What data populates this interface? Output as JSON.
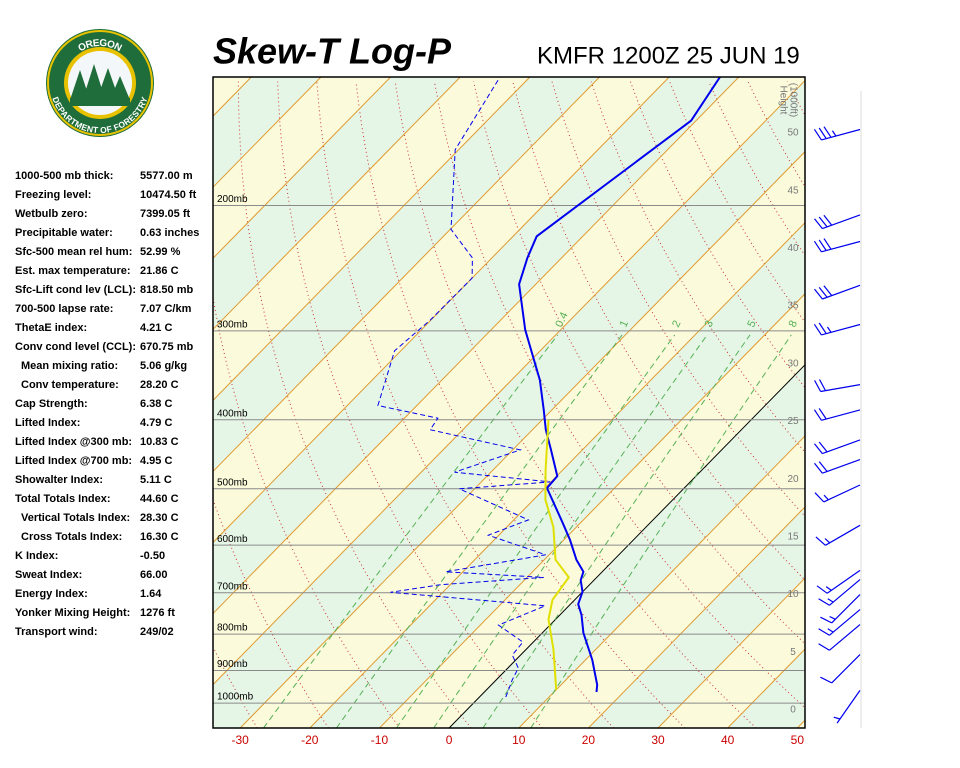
{
  "logo": {
    "top": "OREGON",
    "bottom": "DEPARTMENT OF FORESTRY"
  },
  "indices": [
    {
      "label": "1000-500 mb thick:",
      "value": "5577.00 m"
    },
    {
      "label": "Freezing level:",
      "value": "10474.50 ft"
    },
    {
      "label": "Wetbulb zero:",
      "value": "7399.05 ft"
    },
    {
      "label": "Precipitable water:",
      "value": "0.63 inches"
    },
    {
      "label": "Sfc-500 mean rel hum:",
      "value": "52.99 %"
    },
    {
      "label": "Est. max temperature:",
      "value": "21.86 C"
    },
    {
      "label": "Sfc-Lift cond lev (LCL):",
      "value": "818.50 mb"
    },
    {
      "label": "700-500 lapse rate:",
      "value": "7.07 C/km"
    },
    {
      "label": "ThetaE index:",
      "value": "4.21 C"
    },
    {
      "label": "Conv cond level (CCL):",
      "value": "670.75 mb"
    },
    {
      "label": "Mean mixing ratio:",
      "value": "5.06 g/kg",
      "indent": true
    },
    {
      "label": "Conv temperature:",
      "value": "28.20 C",
      "indent": true
    },
    {
      "label": "Cap Strength:",
      "value": "6.38 C"
    },
    {
      "label": "Lifted Index:",
      "value": "4.79 C"
    },
    {
      "label": "Lifted Index @300 mb:",
      "value": "10.83 C"
    },
    {
      "label": "Lifted Index @700 mb:",
      "value": "4.95 C"
    },
    {
      "label": "Showalter Index:",
      "value": "5.11 C"
    },
    {
      "label": "Total Totals Index:",
      "value": "44.60 C"
    },
    {
      "label": "Vertical Totals Index:",
      "value": "28.30 C",
      "indent": true
    },
    {
      "label": "Cross Totals Index:",
      "value": "16.30 C",
      "indent": true
    },
    {
      "label": "K Index:",
      "value": "-0.50"
    },
    {
      "label": "Sweat Index:",
      "value": "66.00"
    },
    {
      "label": "Energy Index:",
      "value": "1.64"
    },
    {
      "label": "Yonker Mixing Height:",
      "value": "1276 ft"
    },
    {
      "label": "Transport wind:",
      "value": "249/02"
    }
  ],
  "chart_data": {
    "type": "skew-t",
    "title": "Skew-T Log-P",
    "subtitle": "KMFR 1200Z 25 JUN 19",
    "xlim": [
      -33.9,
      51.1
    ],
    "xticks": [
      -30,
      -20,
      -10,
      0,
      10,
      20,
      30,
      40,
      50
    ],
    "ylim": [
      1084,
      132
    ],
    "log_y": true,
    "yticks": [
      {
        "value": 1000,
        "label": "1000mb"
      },
      {
        "value": 900,
        "label": "900mb"
      },
      {
        "value": 800,
        "label": "800mb"
      },
      {
        "value": 700,
        "label": "700mb"
      },
      {
        "value": 600,
        "label": "600mb"
      },
      {
        "value": 500,
        "label": "500mb"
      },
      {
        "value": 400,
        "label": "400mb"
      },
      {
        "value": 300,
        "label": "300mb"
      },
      {
        "value": 200,
        "label": "200mb"
      }
    ],
    "grid": true,
    "height_label": [
      "Height",
      "(1000ft)"
    ],
    "height_lim": [
      -1.56,
      54.85
    ],
    "height_ticks": [
      0,
      5,
      10,
      15,
      20,
      25,
      30,
      35,
      40,
      45,
      50
    ],
    "mixing_ratios": [
      0.4,
      1,
      2,
      3,
      5,
      8
    ],
    "series": [
      {
        "color": "#0000ee",
        "dash": false,
        "pressure": [
          965,
          943,
          870,
          797,
          752,
          726,
          698,
          672,
          654,
          629,
          590,
          558,
          499,
          480,
          441,
          413,
          388,
          352,
          299,
          258,
          237,
          221,
          152,
          132
        ],
        "values": [
          16.1,
          15.2,
          11.0,
          5.9,
          3.1,
          1.1,
          0.0,
          -1.9,
          -2.7,
          -5.4,
          -9.1,
          -12.6,
          -19.7,
          -19.9,
          -24.5,
          -28.1,
          -31.1,
          -35.9,
          -45.1,
          -52.4,
          -54.9,
          -56.6,
          -50.7,
          -52.7
        ]
      },
      {
        "color": "#0000ee",
        "dash": true,
        "pressure": [
          981,
          928,
          893,
          856,
          821,
          777,
          730,
          699,
          682,
          666,
          654,
          619,
          581,
          553,
          500,
          489,
          474,
          441,
          413,
          398,
          382,
          320,
          290,
          253,
          237,
          216,
          167,
          132
        ],
        "values": [
          3.8,
          2.3,
          1.5,
          -1.2,
          -1.5,
          -7.4,
          -3.4,
          -27.5,
          -21.4,
          -7.6,
          -22.5,
          -10.5,
          -21.5,
          -17.9,
          -32.2,
          -20.1,
          -35.2,
          -28.9,
          -44.7,
          -45.2,
          -55.6,
          -60.9,
          -60.1,
          -60.0,
          -62.8,
          -69.9,
          -80.5,
          -84.3
        ]
      },
      {
        "color": "#e0e000",
        "dash": false,
        "pressure": [
          958,
          842,
          763,
          716,
          666,
          629,
          566,
          518,
          470,
          400
        ],
        "values": [
          10.0,
          4.0,
          -1.0,
          -3.2,
          -4.0,
          -8.4,
          -13.3,
          -18.3,
          -22.5,
          -29.1
        ]
      }
    ],
    "winds": {
      "color": "#0000ee",
      "height": [
        50.3,
        42.9,
        40.6,
        36.8,
        33.4,
        28.2,
        26.0,
        23.4,
        21.7,
        19.5,
        16.0,
        12.1,
        11.3,
        10.0,
        8.7,
        7.4,
        4.8,
        1.7
      ],
      "direction": [
        255,
        250,
        255,
        250,
        255,
        260,
        255,
        250,
        250,
        245,
        240,
        235,
        230,
        225,
        230,
        230,
        225,
        215
      ],
      "speed": [
        35,
        30,
        30,
        30,
        25,
        20,
        20,
        20,
        20,
        15,
        15,
        15,
        15,
        15,
        15,
        10,
        10,
        5
      ]
    }
  }
}
